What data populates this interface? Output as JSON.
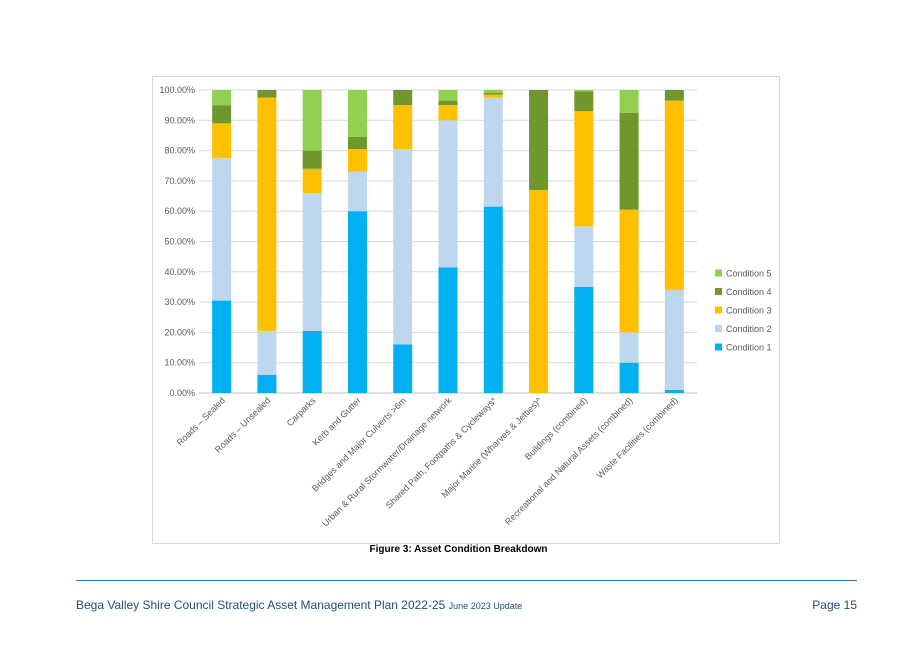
{
  "chart_data": {
    "type": "bar",
    "stacked": true,
    "categories": [
      "Roads – Sealed",
      "Roads – Unsealed",
      "Carparks",
      "Kerb and Gutter",
      "Bridges and Major Culverts >6m",
      "Urban & Rural Stormwater/Drainage network",
      "Shared Path, Footpaths & Cycleways*",
      "Major Marine (Wharves & Jetties)^",
      "Buildings (combined)",
      "Recreational and Natural Assets (combined)",
      "Waste Facilities (combined)"
    ],
    "series": [
      {
        "name": "Condition 1",
        "color": "#00b0f0",
        "values": [
          30.5,
          6.0,
          20.5,
          60.0,
          16.0,
          41.5,
          61.5,
          0.0,
          35.0,
          10.0,
          1.0
        ]
      },
      {
        "name": "Condition 2",
        "color": "#bdd7ee",
        "values": [
          47.0,
          14.5,
          45.5,
          13.0,
          64.5,
          48.5,
          36.0,
          0.0,
          20.0,
          10.0,
          33.0
        ]
      },
      {
        "name": "Condition 3",
        "color": "#ffc000",
        "values": [
          11.5,
          77.0,
          8.0,
          7.5,
          14.5,
          5.0,
          1.0,
          67.0,
          38.0,
          40.5,
          62.5
        ]
      },
      {
        "name": "Condition 4",
        "color": "#70962e",
        "values": [
          6.0,
          2.5,
          6.0,
          4.0,
          5.0,
          1.5,
          0.5,
          33.0,
          6.5,
          32.0,
          3.5
        ]
      },
      {
        "name": "Condition 5",
        "color": "#92d050",
        "values": [
          5.0,
          0.0,
          20.0,
          15.5,
          0.0,
          3.5,
          1.0,
          0.0,
          0.5,
          7.5,
          0.0
        ]
      }
    ],
    "yticks": [
      "0.00%",
      "10.00%",
      "20.00%",
      "30.00%",
      "40.00%",
      "50.00%",
      "60.00%",
      "70.00%",
      "80.00%",
      "90.00%",
      "100.00%"
    ],
    "ylim": [
      0,
      100
    ],
    "legend_order": [
      "Condition 5",
      "Condition 4",
      "Condition 3",
      "Condition 2",
      "Condition 1"
    ],
    "legend_position": "right",
    "grid": true
  },
  "figure": {
    "caption": "Figure 3: Asset Condition Breakdown"
  },
  "footer": {
    "title": "Bega Valley Shire Council Strategic Asset Management Plan 2022-25",
    "update": "June 2023 Update",
    "page": "Page 15"
  }
}
